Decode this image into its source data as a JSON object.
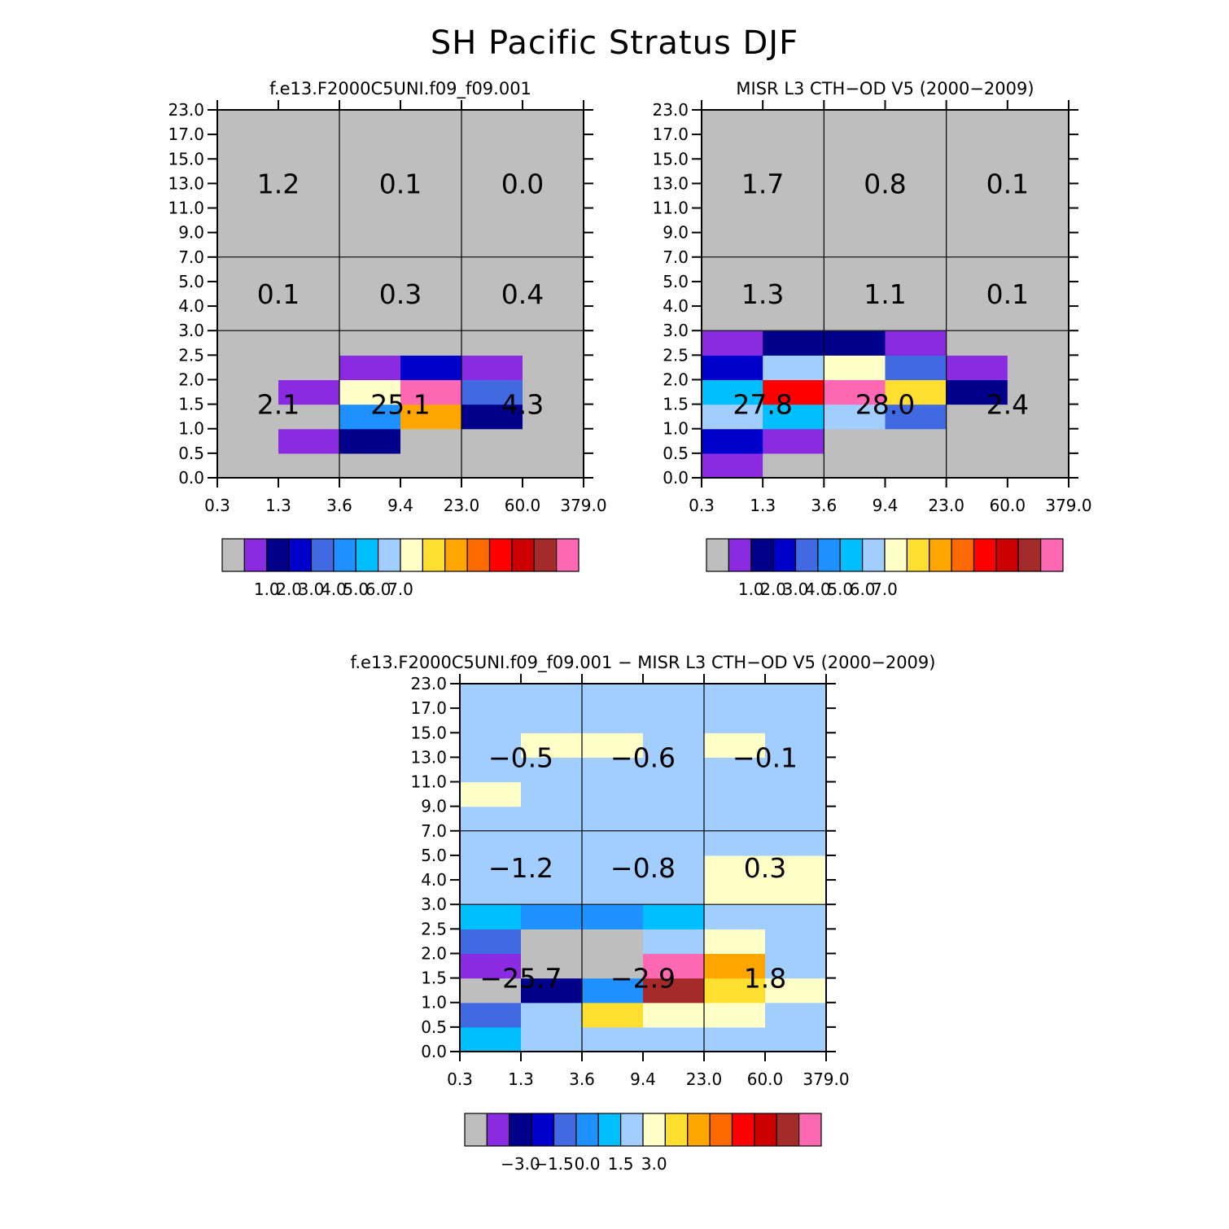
{
  "title": "SH Pacific Stratus DJF",
  "palette": [
    "#bebebe",
    "#8a2be2",
    "#00008b",
    "#0000cd",
    "#4169e1",
    "#1e90ff",
    "#00bfff",
    "#a2cdff",
    "#ffffc8",
    "#ffde32",
    "#ffa500",
    "#ff6a00",
    "#ff0000",
    "#cd0000",
    "#a52a2a",
    "#ff69b4"
  ],
  "chart_data": [
    {
      "type": "heatmap",
      "title": "f.e13.F2000C5UNI.f09_f09.001",
      "x_ticks": [
        "0.3",
        "1.3",
        "3.6",
        "9.4",
        "23.0",
        "60.0",
        "379.0"
      ],
      "y_ticks": [
        "0.0",
        "0.5",
        "1.0",
        "1.5",
        "2.0",
        "2.5",
        "3.0",
        "4.0",
        "5.0",
        "7.0",
        "9.0",
        "11.0",
        "13.0",
        "15.0",
        "17.0",
        "23.0"
      ],
      "cells_row_order": "bottom-to-top, columns left-to-right, values are palette indices",
      "cells": [
        [
          0,
          0,
          0,
          0,
          0,
          0
        ],
        [
          0,
          1,
          2,
          0,
          0,
          0
        ],
        [
          0,
          0,
          5,
          10,
          2,
          0
        ],
        [
          0,
          1,
          8,
          15,
          4,
          0
        ],
        [
          0,
          0,
          1,
          3,
          1,
          0
        ],
        [
          0,
          0,
          0,
          0,
          0,
          0
        ],
        [
          0,
          0,
          0,
          0,
          0,
          0
        ],
        [
          0,
          0,
          0,
          0,
          0,
          0
        ],
        [
          0,
          0,
          0,
          0,
          0,
          0
        ],
        [
          0,
          0,
          0,
          0,
          0,
          0
        ],
        [
          0,
          0,
          0,
          0,
          0,
          0
        ],
        [
          0,
          0,
          0,
          0,
          0,
          0
        ],
        [
          0,
          0,
          0,
          0,
          0,
          0
        ],
        [
          0,
          0,
          0,
          0,
          0,
          0
        ],
        [
          0,
          0,
          0,
          0,
          0,
          0
        ]
      ],
      "annotations": [
        {
          "text": "1.2",
          "x": "1.3",
          "y": "13.0"
        },
        {
          "text": "0.1",
          "x": "9.4",
          "y": "13.0"
        },
        {
          "text": "0.0",
          "x": "60.0",
          "y": "13.0"
        },
        {
          "text": "0.1",
          "x": "1.3",
          "y": "4.5"
        },
        {
          "text": "0.3",
          "x": "9.4",
          "y": "4.5"
        },
        {
          "text": "0.4",
          "x": "60.0",
          "y": "4.5"
        },
        {
          "text": "2.1",
          "x": "1.3",
          "y": "1.5"
        },
        {
          "text": "25.1",
          "x": "9.4",
          "y": "1.5"
        },
        {
          "text": "4.3",
          "x": "60.0",
          "y": "1.5"
        }
      ],
      "colorbar": {
        "labels": [
          "1.0",
          "2.0",
          "3.0",
          "4.0",
          "5.0",
          "6.0",
          "7.0"
        ]
      }
    },
    {
      "type": "heatmap",
      "title": "MISR L3 CTH-OD V5 (2000-2009)",
      "x_ticks": [
        "0.3",
        "1.3",
        "3.6",
        "9.4",
        "23.0",
        "60.0",
        "379.0"
      ],
      "y_ticks": [
        "0.0",
        "0.5",
        "1.0",
        "1.5",
        "2.0",
        "2.5",
        "3.0",
        "4.0",
        "5.0",
        "7.0",
        "9.0",
        "11.0",
        "13.0",
        "15.0",
        "17.0",
        "23.0"
      ],
      "cells_row_order": "bottom-to-top, columns left-to-right, values are palette indices",
      "cells": [
        [
          1,
          0,
          0,
          0,
          0,
          0
        ],
        [
          3,
          1,
          0,
          0,
          0,
          0
        ],
        [
          7,
          6,
          7,
          4,
          0,
          0
        ],
        [
          6,
          12,
          15,
          9,
          2,
          0
        ],
        [
          3,
          7,
          8,
          4,
          1,
          0
        ],
        [
          1,
          2,
          2,
          1,
          0,
          0
        ],
        [
          0,
          0,
          0,
          0,
          0,
          0
        ],
        [
          0,
          0,
          0,
          0,
          0,
          0
        ],
        [
          0,
          0,
          0,
          0,
          0,
          0
        ],
        [
          0,
          0,
          0,
          0,
          0,
          0
        ],
        [
          0,
          0,
          0,
          0,
          0,
          0
        ],
        [
          0,
          0,
          0,
          0,
          0,
          0
        ],
        [
          0,
          0,
          0,
          0,
          0,
          0
        ],
        [
          0,
          0,
          0,
          0,
          0,
          0
        ],
        [
          0,
          0,
          0,
          0,
          0,
          0
        ]
      ],
      "annotations": [
        {
          "text": "1.7",
          "x": "1.3",
          "y": "13.0"
        },
        {
          "text": "0.8",
          "x": "9.4",
          "y": "13.0"
        },
        {
          "text": "0.1",
          "x": "60.0",
          "y": "13.0"
        },
        {
          "text": "1.3",
          "x": "1.3",
          "y": "4.5"
        },
        {
          "text": "1.1",
          "x": "9.4",
          "y": "4.5"
        },
        {
          "text": "0.1",
          "x": "60.0",
          "y": "4.5"
        },
        {
          "text": "27.8",
          "x": "1.3",
          "y": "1.5"
        },
        {
          "text": "28.0",
          "x": "9.4",
          "y": "1.5"
        },
        {
          "text": "2.4",
          "x": "60.0",
          "y": "1.5"
        }
      ],
      "colorbar": {
        "labels": [
          "1.0",
          "2.0",
          "3.0",
          "4.0",
          "5.0",
          "6.0",
          "7.0"
        ]
      }
    },
    {
      "type": "heatmap",
      "title": "f.e13.F2000C5UNI.f09_f09.001 - MISR L3 CTH-OD V5 (2000-2009)",
      "x_ticks": [
        "0.3",
        "1.3",
        "3.6",
        "9.4",
        "23.0",
        "60.0",
        "379.0"
      ],
      "y_ticks": [
        "0.0",
        "0.5",
        "1.0",
        "1.5",
        "2.0",
        "2.5",
        "3.0",
        "4.0",
        "5.0",
        "7.0",
        "9.0",
        "11.0",
        "13.0",
        "15.0",
        "17.0",
        "23.0"
      ],
      "cells_row_order": "bottom-to-top, columns left-to-right, values are palette indices",
      "cells": [
        [
          6,
          7,
          7,
          7,
          7,
          7
        ],
        [
          4,
          7,
          9,
          8,
          8,
          7
        ],
        [
          0,
          2,
          5,
          14,
          9,
          8
        ],
        [
          1,
          0,
          0,
          15,
          10,
          7
        ],
        [
          4,
          0,
          0,
          7,
          8,
          7
        ],
        [
          6,
          5,
          5,
          6,
          7,
          7
        ],
        [
          7,
          7,
          7,
          7,
          8,
          8
        ],
        [
          7,
          7,
          7,
          7,
          8,
          8
        ],
        [
          7,
          7,
          7,
          7,
          7,
          7
        ],
        [
          7,
          7,
          7,
          7,
          7,
          7
        ],
        [
          8,
          7,
          7,
          7,
          7,
          7
        ],
        [
          7,
          7,
          7,
          7,
          7,
          7
        ],
        [
          7,
          8,
          8,
          7,
          8,
          7
        ],
        [
          7,
          7,
          7,
          7,
          7,
          7
        ],
        [
          7,
          7,
          7,
          7,
          7,
          7
        ]
      ],
      "annotations": [
        {
          "text": "-0.5",
          "x": "1.3",
          "y": "13.0"
        },
        {
          "text": "-0.6",
          "x": "9.4",
          "y": "13.0"
        },
        {
          "text": "-0.1",
          "x": "60.0",
          "y": "13.0"
        },
        {
          "text": "-1.2",
          "x": "1.3",
          "y": "4.5"
        },
        {
          "text": "-0.8",
          "x": "9.4",
          "y": "4.5"
        },
        {
          "text": "0.3",
          "x": "60.0",
          "y": "4.5"
        },
        {
          "text": "-25.7",
          "x": "1.3",
          "y": "1.5"
        },
        {
          "text": "-2.9",
          "x": "9.4",
          "y": "1.5"
        },
        {
          "text": "1.8",
          "x": "60.0",
          "y": "1.5"
        }
      ],
      "colorbar": {
        "labels": [
          "-3.0",
          "-1.5",
          "0.0",
          "1.5",
          "3.0"
        ]
      }
    }
  ]
}
